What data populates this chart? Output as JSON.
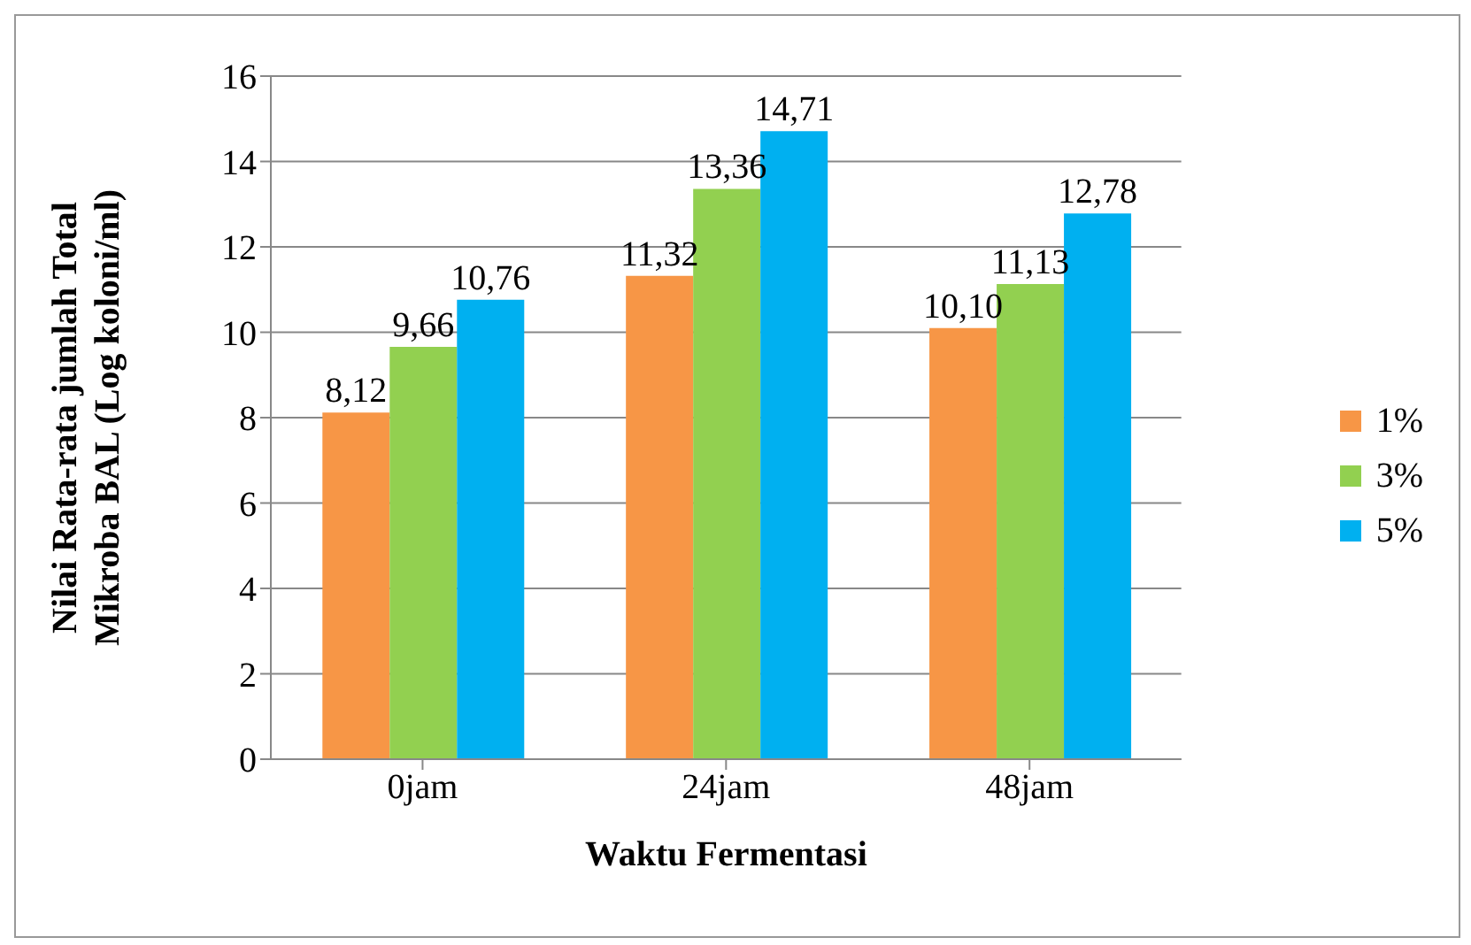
{
  "chart_data": {
    "type": "bar",
    "xlabel": "Waktu Fermentasi",
    "ylabel": "Nilai Rata-rata jumlah Total\nMikroba BAL (Log koloni/ml)",
    "categories": [
      "0jam",
      "24jam",
      "48jam"
    ],
    "series": [
      {
        "name": "1%",
        "color": "#f79646",
        "values": [
          8.12,
          11.32,
          10.1
        ],
        "value_labels": [
          "8,12",
          "11,32",
          "10,10"
        ]
      },
      {
        "name": "3%",
        "color": "#92d050",
        "values": [
          9.66,
          13.36,
          11.13
        ],
        "value_labels": [
          "9,66",
          "13,36",
          "11,13"
        ]
      },
      {
        "name": "5%",
        "color": "#00b0f0",
        "values": [
          10.76,
          14.71,
          12.78
        ],
        "value_labels": [
          "10,76",
          "14,71",
          "12,78"
        ]
      }
    ],
    "ylim": [
      0,
      16
    ],
    "yticks": [
      0,
      2,
      4,
      6,
      8,
      10,
      12,
      14,
      16
    ],
    "grid": "y",
    "legend": "right"
  }
}
